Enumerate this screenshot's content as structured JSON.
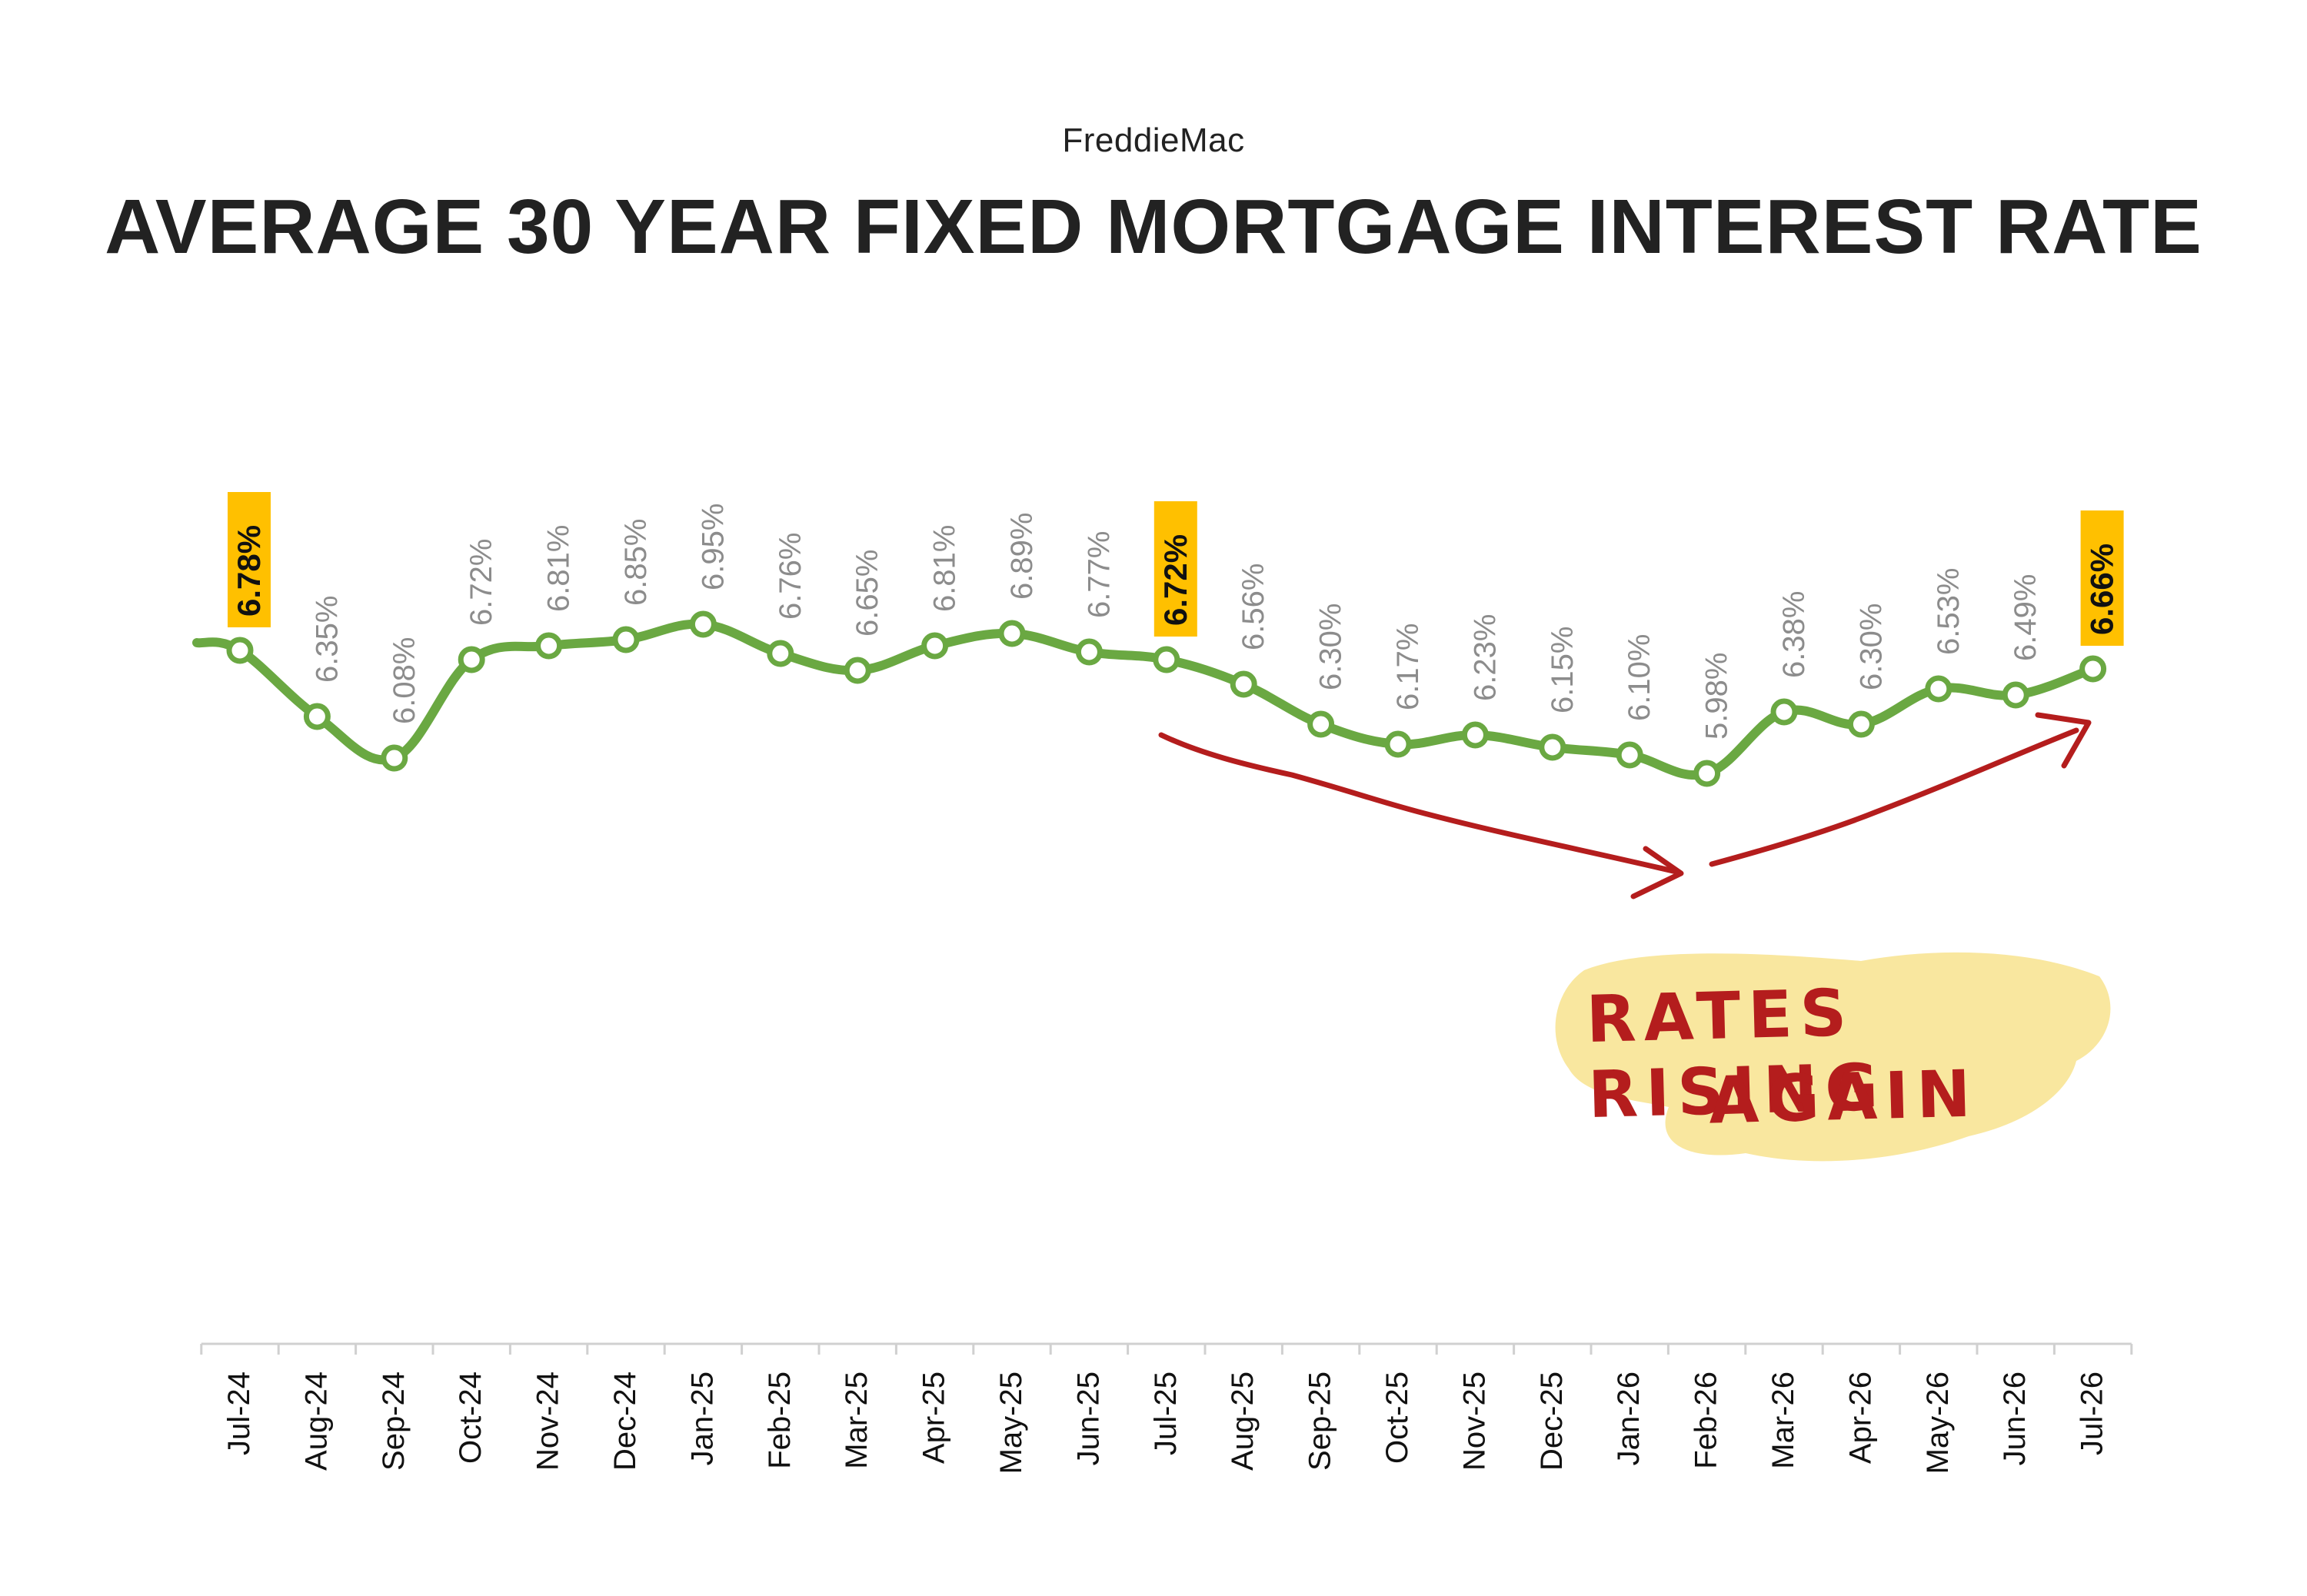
{
  "source": "FreddieMac",
  "title": "AVERAGE 30 YEAR FIXED MORTGAGE INTEREST RATE",
  "annotation": {
    "line1": "RATES RISING",
    "line2": "AGAIN"
  },
  "colors": {
    "line": "#6aa842",
    "highlight": "#ffc000",
    "label": "#8c8c8c",
    "arrow": "#b41d1d",
    "note_bg": "#f9e79f"
  },
  "chart_data": {
    "type": "line",
    "title": "AVERAGE 30 YEAR FIXED MORTGAGE INTEREST RATE",
    "xlabel": "",
    "ylabel": "",
    "grid": false,
    "categories": [
      "Jul-24",
      "Aug-24",
      "Sep-24",
      "Oct-24",
      "Nov-24",
      "Dec-24",
      "Jan-25",
      "Feb-25",
      "Mar-25",
      "Apr-25",
      "May-25",
      "Jun-25",
      "Jul-25",
      "Aug-25",
      "Sep-25",
      "Oct-25",
      "Nov-25",
      "Dec-25",
      "Jan-26",
      "Feb-26",
      "Mar-26",
      "Apr-26",
      "May-26",
      "Jun-26",
      "Jul-26"
    ],
    "series": [
      {
        "values": [
          6.78,
          6.35,
          6.08,
          6.72,
          6.81,
          6.85,
          6.95,
          6.76,
          6.65,
          6.81,
          6.89,
          6.77,
          6.72,
          6.56,
          6.3,
          6.17,
          6.23,
          6.15,
          6.1,
          5.98,
          6.38,
          6.3,
          6.53,
          6.49,
          6.66
        ],
        "labels": [
          "6.78%",
          "6.35%",
          "6.08%",
          "6.72%",
          "6.81%",
          "6.85%",
          "6.95%",
          "6.76%",
          "6.65%",
          "6.81%",
          "6.89%",
          "6.77%",
          "6.72%",
          "6.56%",
          "6.30%",
          "6.17%",
          "6.23%",
          "6.15%",
          "6.10%",
          "5.98%",
          "6.38%",
          "6.30%",
          "6.53%",
          "6.49%",
          "6.66%"
        ]
      }
    ],
    "highlighted": [
      "Jul-24",
      "Jul-25",
      "Jul-26"
    ]
  }
}
